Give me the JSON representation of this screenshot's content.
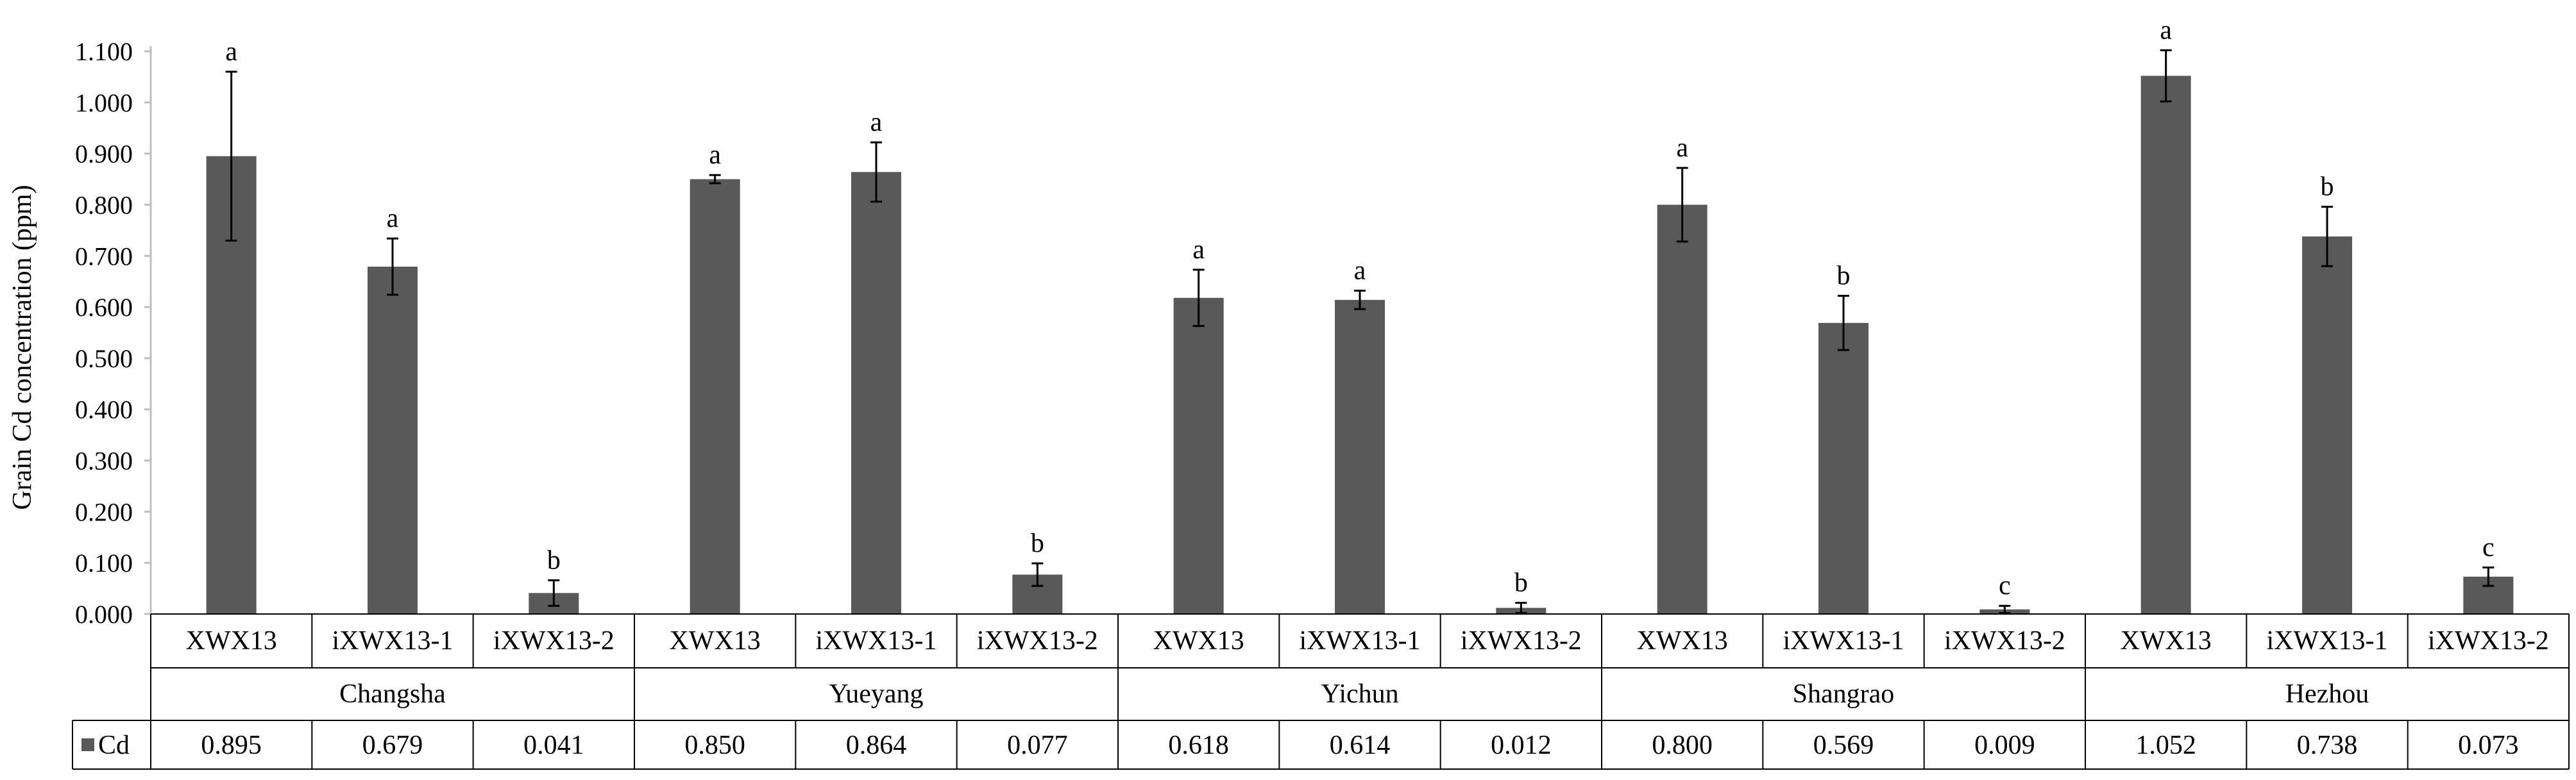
{
  "chart_data": {
    "type": "bar",
    "ylabel": "Grain Cd concentration (ppm)",
    "ylim": [
      0,
      1.1
    ],
    "yticks": [
      "0.000",
      "0.100",
      "0.200",
      "0.300",
      "0.400",
      "0.500",
      "0.600",
      "0.700",
      "0.800",
      "0.900",
      "1.000",
      "1.100"
    ],
    "grid": false,
    "legend": "data table, left",
    "groups": [
      {
        "name": "Changsha",
        "categories": [
          "XWX13",
          "iXWX13-1",
          "iXWX13-2"
        ],
        "values": [
          0.895,
          0.679,
          0.041
        ],
        "errors": [
          0.165,
          0.055,
          0.025
        ],
        "labels": [
          "a",
          "a",
          "b"
        ]
      },
      {
        "name": "Yueyang",
        "categories": [
          "XWX13",
          "iXWX13-1",
          "iXWX13-2"
        ],
        "values": [
          0.85,
          0.864,
          0.077
        ],
        "errors": [
          0.008,
          0.058,
          0.022
        ],
        "labels": [
          "a",
          "a",
          "b"
        ]
      },
      {
        "name": "Yichun",
        "categories": [
          "XWX13",
          "iXWX13-1",
          "iXWX13-2"
        ],
        "values": [
          0.618,
          0.614,
          0.012
        ],
        "errors": [
          0.055,
          0.018,
          0.01
        ],
        "labels": [
          "a",
          "a",
          "b"
        ]
      },
      {
        "name": "Shangrao",
        "categories": [
          "XWX13",
          "iXWX13-1",
          "iXWX13-2"
        ],
        "values": [
          0.8,
          0.569,
          0.009
        ],
        "errors": [
          0.072,
          0.053,
          0.007
        ],
        "labels": [
          "a",
          "b",
          "c"
        ]
      },
      {
        "name": "Hezhou",
        "categories": [
          "XWX13",
          "iXWX13-1",
          "iXWX13-2"
        ],
        "values": [
          1.052,
          0.738,
          0.073
        ],
        "errors": [
          0.05,
          0.058,
          0.018
        ],
        "labels": [
          "a",
          "b",
          "c"
        ]
      }
    ],
    "series": [
      {
        "name": "Cd",
        "color": "#595959",
        "value_labels": [
          "0.895",
          "0.679",
          "0.041",
          "0.850",
          "0.864",
          "0.077",
          "0.618",
          "0.614",
          "0.012",
          "0.800",
          "0.569",
          "0.009",
          "1.052",
          "0.738",
          "0.073"
        ]
      }
    ]
  }
}
